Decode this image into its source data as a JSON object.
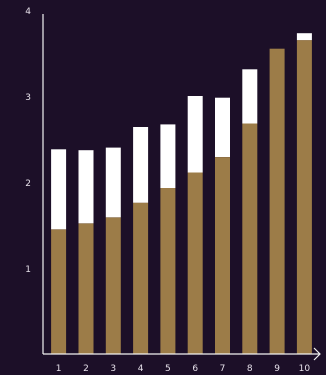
{
  "chart_data": {
    "type": "bar",
    "stacked": true,
    "categories": [
      "1",
      "2",
      "3",
      "4",
      "5",
      "6",
      "7",
      "8",
      "9",
      "10"
    ],
    "series": [
      {
        "values": [
          1.45,
          1.52,
          1.59,
          1.76,
          1.93,
          2.11,
          2.29,
          2.68,
          3.55,
          3.65
        ],
        "color": "#9c7c48"
      },
      {
        "values": [
          0.93,
          0.85,
          0.81,
          0.88,
          0.74,
          0.89,
          0.69,
          0.63,
          0.0,
          0.08
        ],
        "color": "#ffffff"
      }
    ],
    "ylim": [
      0,
      4
    ],
    "yticks": [
      "1",
      "2",
      "3",
      "4"
    ],
    "xlabel": "",
    "ylabel": "",
    "grid": false,
    "colors": {
      "background": "#1c0f28",
      "axis": "#f2f2f2",
      "text": "#e6e0ea"
    }
  }
}
